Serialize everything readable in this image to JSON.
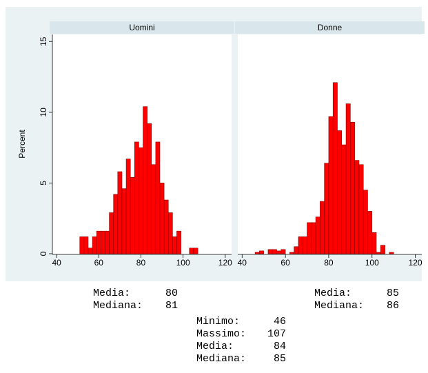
{
  "chart_data": [
    {
      "type": "histogram",
      "title": "Uomini",
      "y_label": "Percent",
      "color": "#ff0000",
      "bins": [
        51,
        53,
        55,
        57,
        59,
        61,
        63,
        65,
        67,
        69,
        71,
        73,
        75,
        77,
        79,
        81,
        83,
        85,
        87,
        89,
        91,
        93,
        95,
        97,
        99,
        101,
        103,
        105,
        107
      ],
      "values": [
        1.2,
        1.2,
        0.4,
        1.2,
        1.6,
        1.6,
        1.6,
        2.9,
        4.2,
        5.8,
        4.6,
        6.7,
        5.4,
        7.9,
        7.5,
        10.4,
        9.2,
        6.3,
        7.9,
        5.0,
        3.8,
        2.9,
        1.2,
        1.6,
        0,
        0,
        0.4,
        0.4
      ],
      "xlim": [
        38,
        123
      ],
      "xticks": [
        40,
        60,
        80,
        100,
        120
      ],
      "ylim": [
        0,
        15.5
      ],
      "yticks": [
        0,
        5,
        10,
        15
      ]
    },
    {
      "type": "histogram",
      "title": "Donne",
      "color": "#ff0000",
      "bins": [
        46,
        48,
        50,
        52,
        54,
        56,
        58,
        60,
        62,
        64,
        66,
        68,
        70,
        72,
        74,
        76,
        78,
        80,
        82,
        84,
        86,
        88,
        90,
        92,
        94,
        96,
        98,
        100,
        102,
        104,
        106,
        108,
        110
      ],
      "values": [
        0.1,
        0.2,
        0,
        0.3,
        0.3,
        0.2,
        0.3,
        0,
        0.1,
        0.5,
        1.2,
        1.2,
        2.2,
        2.2,
        2.6,
        3.7,
        6.4,
        9.7,
        12.1,
        8.7,
        7.7,
        10.6,
        9.3,
        6.6,
        6.3,
        4.5,
        3.0,
        1.5,
        0.1,
        0.6,
        0,
        0.1
      ],
      "xlim": [
        38,
        123
      ],
      "xticks": [
        40,
        60,
        80,
        100,
        120
      ],
      "ylim": [
        0,
        15.5
      ]
    }
  ],
  "stats": {
    "left": [
      {
        "label": "Media:",
        "value": 80
      },
      {
        "label": "Mediana:",
        "value": 81
      }
    ],
    "right": [
      {
        "label": "Media:",
        "value": 85
      },
      {
        "label": "Mediana:",
        "value": 86
      }
    ],
    "total": [
      {
        "label": "Minimo:",
        "value": 46
      },
      {
        "label": "Massimo:",
        "value": 107
      },
      {
        "label": "Media:",
        "value": 84
      },
      {
        "label": "Mediana:",
        "value": 85
      }
    ]
  }
}
